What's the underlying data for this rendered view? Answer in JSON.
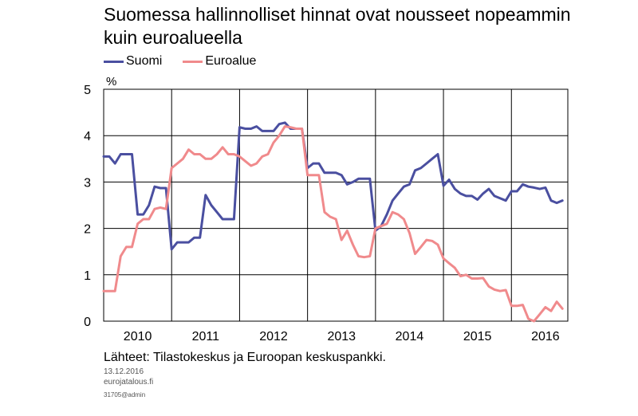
{
  "chart_data": {
    "type": "line",
    "title": "Suomessa hallinnolliset hinnat ovat nousseet nopeammin kuin euroalueella",
    "unit": "%",
    "ylim": [
      0,
      5
    ],
    "yticks": [
      "0",
      "1",
      "2",
      "3",
      "4",
      "5"
    ],
    "xlim": [
      2010.0,
      2016.83
    ],
    "x_tick_labels": [
      "2010",
      "2011",
      "2012",
      "2013",
      "2014",
      "2015",
      "2016"
    ],
    "grid": true,
    "legend_position": "top-left",
    "series": [
      {
        "name": "Suomi",
        "color": "#4a4fa0",
        "points": [
          [
            2010.0,
            3.55
          ],
          [
            2010.083,
            3.55
          ],
          [
            2010.167,
            3.4
          ],
          [
            2010.25,
            3.6
          ],
          [
            2010.333,
            3.6
          ],
          [
            2010.417,
            3.6
          ],
          [
            2010.5,
            2.3
          ],
          [
            2010.583,
            2.3
          ],
          [
            2010.667,
            2.5
          ],
          [
            2010.75,
            2.9
          ],
          [
            2010.833,
            2.87
          ],
          [
            2010.917,
            2.87
          ],
          [
            2011.0,
            1.55
          ],
          [
            2011.083,
            1.7
          ],
          [
            2011.167,
            1.7
          ],
          [
            2011.25,
            1.7
          ],
          [
            2011.333,
            1.8
          ],
          [
            2011.417,
            1.8
          ],
          [
            2011.5,
            2.72
          ],
          [
            2011.583,
            2.5
          ],
          [
            2011.667,
            2.35
          ],
          [
            2011.75,
            2.2
          ],
          [
            2011.833,
            2.2
          ],
          [
            2011.917,
            2.2
          ],
          [
            2012.0,
            4.18
          ],
          [
            2012.083,
            4.15
          ],
          [
            2012.167,
            4.15
          ],
          [
            2012.25,
            4.2
          ],
          [
            2012.333,
            4.1
          ],
          [
            2012.417,
            4.1
          ],
          [
            2012.5,
            4.1
          ],
          [
            2012.583,
            4.25
          ],
          [
            2012.667,
            4.28
          ],
          [
            2012.75,
            4.15
          ],
          [
            2012.833,
            4.15
          ],
          [
            2012.917,
            4.15
          ],
          [
            2013.0,
            3.3
          ],
          [
            2013.083,
            3.4
          ],
          [
            2013.167,
            3.4
          ],
          [
            2013.25,
            3.2
          ],
          [
            2013.333,
            3.2
          ],
          [
            2013.417,
            3.2
          ],
          [
            2013.5,
            3.15
          ],
          [
            2013.583,
            2.95
          ],
          [
            2013.667,
            3.0
          ],
          [
            2013.75,
            3.07
          ],
          [
            2013.833,
            3.07
          ],
          [
            2013.917,
            3.07
          ],
          [
            2014.0,
            1.95
          ],
          [
            2014.083,
            2.05
          ],
          [
            2014.167,
            2.3
          ],
          [
            2014.25,
            2.6
          ],
          [
            2014.333,
            2.75
          ],
          [
            2014.417,
            2.9
          ],
          [
            2014.5,
            2.95
          ],
          [
            2014.583,
            3.25
          ],
          [
            2014.667,
            3.3
          ],
          [
            2014.75,
            3.4
          ],
          [
            2014.833,
            3.5
          ],
          [
            2014.917,
            3.6
          ],
          [
            2015.0,
            2.92
          ],
          [
            2015.083,
            3.05
          ],
          [
            2015.167,
            2.85
          ],
          [
            2015.25,
            2.75
          ],
          [
            2015.333,
            2.7
          ],
          [
            2015.417,
            2.7
          ],
          [
            2015.5,
            2.62
          ],
          [
            2015.583,
            2.75
          ],
          [
            2015.667,
            2.85
          ],
          [
            2015.75,
            2.7
          ],
          [
            2015.833,
            2.65
          ],
          [
            2015.917,
            2.6
          ],
          [
            2016.0,
            2.8
          ],
          [
            2016.083,
            2.8
          ],
          [
            2016.167,
            2.95
          ],
          [
            2016.25,
            2.9
          ],
          [
            2016.333,
            2.88
          ],
          [
            2016.417,
            2.85
          ],
          [
            2016.5,
            2.88
          ],
          [
            2016.583,
            2.6
          ],
          [
            2016.667,
            2.55
          ],
          [
            2016.75,
            2.6
          ]
        ]
      },
      {
        "name": "Euroalue",
        "color": "#f08a8c",
        "points": [
          [
            2010.0,
            0.65
          ],
          [
            2010.083,
            0.65
          ],
          [
            2010.167,
            0.65
          ],
          [
            2010.25,
            1.4
          ],
          [
            2010.333,
            1.6
          ],
          [
            2010.417,
            1.6
          ],
          [
            2010.5,
            2.1
          ],
          [
            2010.583,
            2.2
          ],
          [
            2010.667,
            2.2
          ],
          [
            2010.75,
            2.42
          ],
          [
            2010.833,
            2.45
          ],
          [
            2010.917,
            2.42
          ],
          [
            2011.0,
            3.3
          ],
          [
            2011.083,
            3.4
          ],
          [
            2011.167,
            3.5
          ],
          [
            2011.25,
            3.7
          ],
          [
            2011.333,
            3.6
          ],
          [
            2011.417,
            3.6
          ],
          [
            2011.5,
            3.5
          ],
          [
            2011.583,
            3.5
          ],
          [
            2011.667,
            3.6
          ],
          [
            2011.75,
            3.75
          ],
          [
            2011.833,
            3.6
          ],
          [
            2011.917,
            3.6
          ],
          [
            2012.0,
            3.55
          ],
          [
            2012.083,
            3.45
          ],
          [
            2012.167,
            3.35
          ],
          [
            2012.25,
            3.4
          ],
          [
            2012.333,
            3.55
          ],
          [
            2012.417,
            3.6
          ],
          [
            2012.5,
            3.85
          ],
          [
            2012.583,
            4.0
          ],
          [
            2012.667,
            4.2
          ],
          [
            2012.75,
            4.18
          ],
          [
            2012.833,
            4.15
          ],
          [
            2012.917,
            4.15
          ],
          [
            2013.0,
            3.15
          ],
          [
            2013.083,
            3.15
          ],
          [
            2013.167,
            3.15
          ],
          [
            2013.25,
            2.35
          ],
          [
            2013.333,
            2.25
          ],
          [
            2013.417,
            2.2
          ],
          [
            2013.5,
            1.75
          ],
          [
            2013.583,
            1.95
          ],
          [
            2013.667,
            1.65
          ],
          [
            2013.75,
            1.4
          ],
          [
            2013.833,
            1.38
          ],
          [
            2013.917,
            1.4
          ],
          [
            2014.0,
            2.0
          ],
          [
            2014.083,
            2.05
          ],
          [
            2014.167,
            2.1
          ],
          [
            2014.25,
            2.35
          ],
          [
            2014.333,
            2.3
          ],
          [
            2014.417,
            2.2
          ],
          [
            2014.5,
            1.9
          ],
          [
            2014.583,
            1.45
          ],
          [
            2014.667,
            1.6
          ],
          [
            2014.75,
            1.75
          ],
          [
            2014.833,
            1.73
          ],
          [
            2014.917,
            1.65
          ],
          [
            2015.0,
            1.35
          ],
          [
            2015.083,
            1.25
          ],
          [
            2015.167,
            1.15
          ],
          [
            2015.25,
            0.97
          ],
          [
            2015.333,
            1.0
          ],
          [
            2015.417,
            0.92
          ],
          [
            2015.5,
            0.92
          ],
          [
            2015.583,
            0.93
          ],
          [
            2015.667,
            0.75
          ],
          [
            2015.75,
            0.68
          ],
          [
            2015.833,
            0.65
          ],
          [
            2015.917,
            0.67
          ],
          [
            2016.0,
            0.33
          ],
          [
            2016.083,
            0.33
          ],
          [
            2016.167,
            0.35
          ],
          [
            2016.25,
            0.05
          ],
          [
            2016.333,
            0.0
          ],
          [
            2016.417,
            0.15
          ],
          [
            2016.5,
            0.3
          ],
          [
            2016.583,
            0.22
          ],
          [
            2016.667,
            0.42
          ],
          [
            2016.75,
            0.27
          ]
        ]
      }
    ]
  },
  "footer": {
    "source": "Lähteet: Tilastokeskus ja Euroopan keskuspankki.",
    "date": "13.12.2016",
    "site": "eurojatalous.fi",
    "code": "31705@admin"
  }
}
